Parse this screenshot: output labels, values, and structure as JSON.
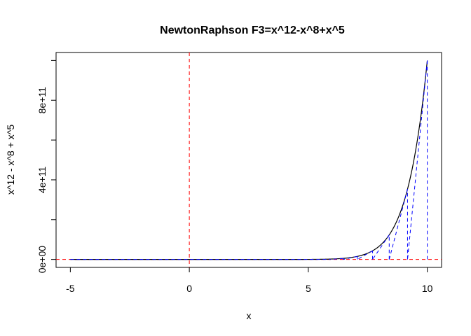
{
  "chart_data": {
    "type": "line",
    "title": "NewtonRaphson F3=x^12-x^8+x^5",
    "xlabel": "x",
    "ylabel": "x^12 - x^8 + x^5",
    "xlim": [
      -5.6,
      10.6
    ],
    "ylim": [
      -40000000000.0,
      1040000000000.0
    ],
    "x_ticks": [
      -5,
      0,
      5,
      10
    ],
    "x_tick_labels": [
      "-5",
      "0",
      "5",
      "10"
    ],
    "y_ticks": [
      0,
      200000000000,
      400000000000,
      600000000000,
      800000000000,
      1000000000000
    ],
    "y_tick_labels": [
      "0e+00",
      "",
      "4e+11",
      "",
      "8e+11",
      ""
    ],
    "function": "x^12 - x^8 + x^5",
    "x_range": [
      -5,
      10
    ],
    "curve_color": "#000000",
    "newton_iterates": [
      10,
      9.17,
      8.4,
      7.7,
      7.06,
      6.47,
      5.93
    ],
    "newton_color": "#0000ff",
    "reference_lines": [
      {
        "orientation": "vertical",
        "value": 0,
        "color": "#ff0000",
        "style": "dashed"
      },
      {
        "orientation": "horizontal",
        "value": 0,
        "color": "#ff0000",
        "style": "dashed"
      }
    ],
    "grid": false,
    "legend": "none"
  }
}
